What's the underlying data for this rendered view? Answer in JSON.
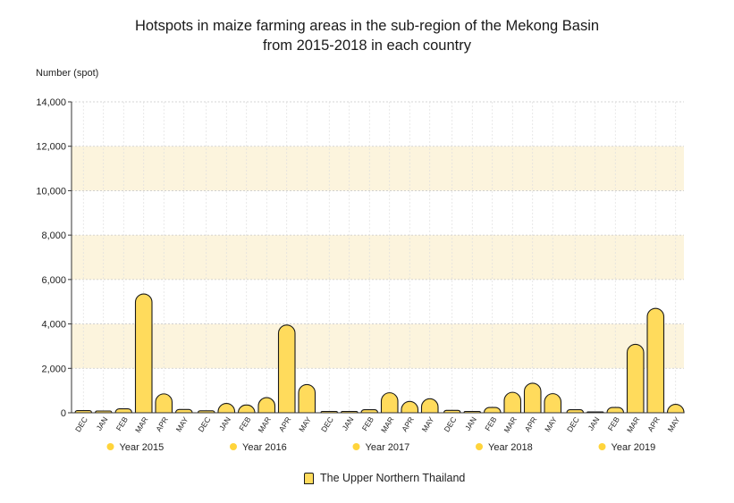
{
  "chart_data": {
    "type": "bar",
    "title_line1": "Hotspots in maize farming areas in the sub-region of the Mekong Basin",
    "title_line2": "from 2015-2018 in each country",
    "ylabel": "Number (spot)",
    "ylim": [
      0,
      14000
    ],
    "yticks": [
      "0",
      "2,000",
      "4,000",
      "6,000",
      "8,000",
      "10,000",
      "12,000",
      "14,000"
    ],
    "series_name": "The Upper Northern Thailand",
    "groups": [
      {
        "label": "Year 2015",
        "categories": [
          "DEC",
          "JAN",
          "FEB",
          "MAR",
          "APR",
          "MAY"
        ],
        "values": [
          100,
          80,
          180,
          5350,
          850,
          150
        ]
      },
      {
        "label": "Year 2016",
        "categories": [
          "DEC",
          "JAN",
          "FEB",
          "MAR",
          "APR",
          "MAY"
        ],
        "values": [
          90,
          420,
          350,
          680,
          3950,
          1270
        ]
      },
      {
        "label": "Year 2017",
        "categories": [
          "DEC",
          "JAN",
          "FEB",
          "MAR",
          "APR",
          "MAY"
        ],
        "values": [
          60,
          60,
          140,
          900,
          510,
          630
        ]
      },
      {
        "label": "Year 2018",
        "categories": [
          "DEC",
          "JAN",
          "FEB",
          "MAR",
          "APR",
          "MAY"
        ],
        "values": [
          110,
          60,
          240,
          920,
          1330,
          860
        ]
      },
      {
        "label": "Year 2019",
        "categories": [
          "DEC",
          "JAN",
          "FEB",
          "MAR",
          "APR",
          "MAY"
        ],
        "values": [
          140,
          40,
          240,
          3080,
          4700,
          380
        ]
      }
    ],
    "colors": {
      "bar": "#ffdb5c",
      "bar_stroke": "#1a1a1a",
      "band": "#fcf4dd",
      "dot": "#ffd43b",
      "axis": "#333333"
    },
    "grid": true
  }
}
